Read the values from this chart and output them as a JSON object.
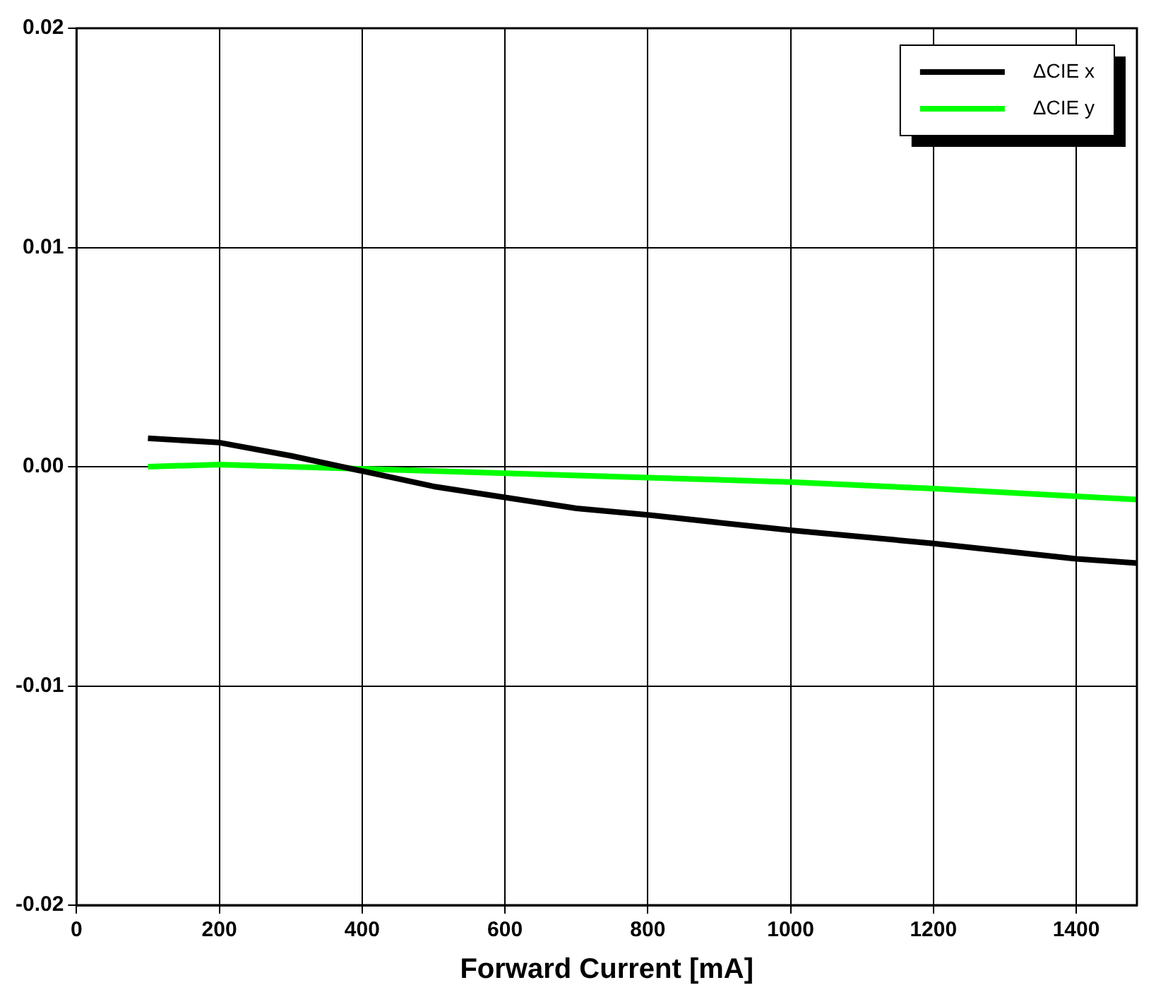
{
  "chart_data": {
    "type": "line",
    "xlabel": "Forward Current [mA]",
    "xlim": [
      0,
      1485
    ],
    "xticks": [
      0,
      200,
      400,
      600,
      800,
      1000,
      1200,
      1400
    ],
    "ylim": [
      -0.02,
      0.02
    ],
    "yticks": [
      {
        "value": -0.02,
        "label": "-0.02"
      },
      {
        "value": -0.01,
        "label": "-0.01"
      },
      {
        "value": 0,
        "label": "0.00"
      },
      {
        "value": 0.01,
        "label": "0.01"
      },
      {
        "value": 0.02,
        "label": "0.02"
      }
    ],
    "grid": true,
    "legend": "top right",
    "marker": "none",
    "line_style": "solid",
    "series": [
      {
        "name": "ΔCIE x",
        "color": "#000000",
        "x": [
          100,
          200,
          300,
          400,
          500,
          600,
          700,
          800,
          1000,
          1200,
          1400,
          1485
        ],
        "values": [
          0.0013,
          0.0011,
          0.0005,
          -0.0002,
          -0.0009,
          -0.0014,
          -0.0019,
          -0.0022,
          -0.0029,
          -0.0035,
          -0.0042,
          -0.0044
        ]
      },
      {
        "name": "ΔCIE y",
        "color": "#00ff00",
        "x": [
          100,
          200,
          400,
          600,
          800,
          1000,
          1200,
          1485
        ],
        "values": [
          0,
          0.0001,
          -0.0001,
          -0.0003,
          -0.0005,
          -0.0007,
          -0.001,
          -0.0015
        ]
      }
    ]
  }
}
